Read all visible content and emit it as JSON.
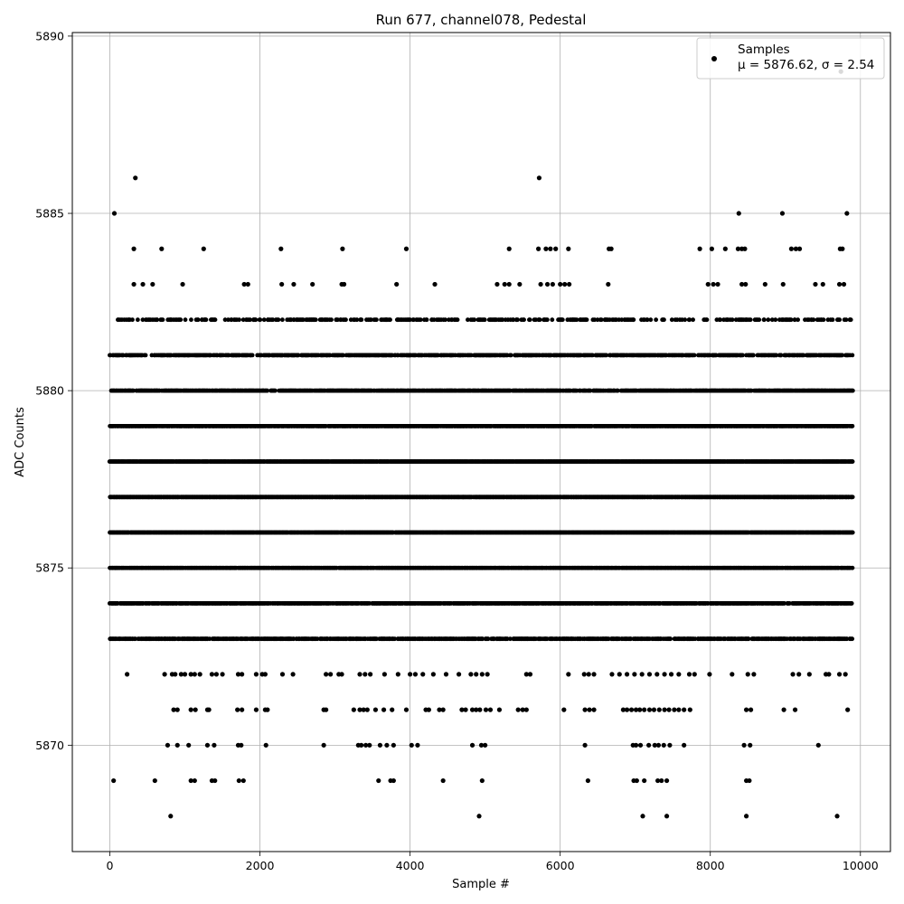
{
  "chart_data": {
    "type": "scatter",
    "title": "Run 677, channel078, Pedestal",
    "xlabel": "Sample #",
    "ylabel": "ADC Counts",
    "xlim": [
      -500,
      10400
    ],
    "ylim": [
      5867.0,
      5890.1
    ],
    "xticks": [
      0,
      2000,
      4000,
      6000,
      8000,
      10000
    ],
    "yticks": [
      5870,
      5875,
      5880,
      5885,
      5890
    ],
    "grid": true,
    "legend_placement": "top-right",
    "marker_color": "#000000",
    "series": [
      {
        "name": "Samples",
        "stats_label": "μ = 5876.62, σ = 2.54",
        "x_range": [
          0,
          9900
        ],
        "bands": [
          {
            "y": 5873,
            "coverage": 0.65
          },
          {
            "y": 5874,
            "coverage": 0.8
          },
          {
            "y": 5875,
            "coverage": 0.9
          },
          {
            "y": 5876,
            "coverage": 0.97
          },
          {
            "y": 5877,
            "coverage": 0.97
          },
          {
            "y": 5878,
            "coverage": 0.97
          },
          {
            "y": 5879,
            "coverage": 0.9
          },
          {
            "y": 5880,
            "coverage": 0.75
          },
          {
            "y": 5881,
            "coverage": 0.55
          },
          {
            "y": 5882,
            "coverage": 0.3
          }
        ],
        "outliers": [
          [
            50,
            5869
          ],
          [
            600,
            5869
          ],
          [
            1080,
            5869
          ],
          [
            1130,
            5869
          ],
          [
            1360,
            5869
          ],
          [
            1400,
            5869
          ],
          [
            1720,
            5869
          ],
          [
            1780,
            5869
          ],
          [
            3580,
            5869
          ],
          [
            3740,
            5869
          ],
          [
            3780,
            5869
          ],
          [
            4440,
            5869
          ],
          [
            4960,
            5869
          ],
          [
            6370,
            5869
          ],
          [
            6980,
            5869
          ],
          [
            7020,
            5869
          ],
          [
            7120,
            5869
          ],
          [
            7300,
            5869
          ],
          [
            7350,
            5869
          ],
          [
            7420,
            5869
          ],
          [
            8480,
            5869
          ],
          [
            8520,
            5869
          ],
          [
            810,
            5868
          ],
          [
            4920,
            5868
          ],
          [
            7100,
            5868
          ],
          [
            7420,
            5868
          ],
          [
            8480,
            5868
          ],
          [
            9690,
            5868
          ],
          [
            770,
            5870
          ],
          [
            900,
            5870
          ],
          [
            1050,
            5870
          ],
          [
            1300,
            5870
          ],
          [
            1390,
            5870
          ],
          [
            1710,
            5870
          ],
          [
            1750,
            5870
          ],
          [
            2080,
            5870
          ],
          [
            2850,
            5870
          ],
          [
            3310,
            5870
          ],
          [
            3350,
            5870
          ],
          [
            3410,
            5870
          ],
          [
            3460,
            5870
          ],
          [
            3600,
            5870
          ],
          [
            3690,
            5870
          ],
          [
            3780,
            5870
          ],
          [
            4020,
            5870
          ],
          [
            4100,
            5870
          ],
          [
            4830,
            5870
          ],
          [
            4950,
            5870
          ],
          [
            5000,
            5870
          ],
          [
            6330,
            5870
          ],
          [
            6970,
            5870
          ],
          [
            7010,
            5870
          ],
          [
            7070,
            5870
          ],
          [
            7180,
            5870
          ],
          [
            7260,
            5870
          ],
          [
            7310,
            5870
          ],
          [
            7380,
            5870
          ],
          [
            7460,
            5870
          ],
          [
            7650,
            5870
          ],
          [
            8450,
            5870
          ],
          [
            8530,
            5870
          ],
          [
            9440,
            5870
          ],
          [
            850,
            5871
          ],
          [
            900,
            5871
          ],
          [
            1080,
            5871
          ],
          [
            1140,
            5871
          ],
          [
            1300,
            5871
          ],
          [
            1320,
            5871
          ],
          [
            1700,
            5871
          ],
          [
            1760,
            5871
          ],
          [
            1950,
            5871
          ],
          [
            2070,
            5871
          ],
          [
            2100,
            5871
          ],
          [
            2850,
            5871
          ],
          [
            2880,
            5871
          ],
          [
            3250,
            5871
          ],
          [
            3330,
            5871
          ],
          [
            3380,
            5871
          ],
          [
            3430,
            5871
          ],
          [
            3540,
            5871
          ],
          [
            3650,
            5871
          ],
          [
            3760,
            5871
          ],
          [
            3950,
            5871
          ],
          [
            4210,
            5871
          ],
          [
            4250,
            5871
          ],
          [
            4390,
            5871
          ],
          [
            4440,
            5871
          ],
          [
            4690,
            5871
          ],
          [
            4740,
            5871
          ],
          [
            4830,
            5871
          ],
          [
            4880,
            5871
          ],
          [
            4930,
            5871
          ],
          [
            5010,
            5871
          ],
          [
            5070,
            5871
          ],
          [
            5190,
            5871
          ],
          [
            5440,
            5871
          ],
          [
            5500,
            5871
          ],
          [
            5550,
            5871
          ],
          [
            6050,
            5871
          ],
          [
            6330,
            5871
          ],
          [
            6390,
            5871
          ],
          [
            6450,
            5871
          ],
          [
            6840,
            5871
          ],
          [
            6890,
            5871
          ],
          [
            6950,
            5871
          ],
          [
            7010,
            5871
          ],
          [
            7060,
            5871
          ],
          [
            7120,
            5871
          ],
          [
            7190,
            5871
          ],
          [
            7250,
            5871
          ],
          [
            7320,
            5871
          ],
          [
            7390,
            5871
          ],
          [
            7450,
            5871
          ],
          [
            7520,
            5871
          ],
          [
            7580,
            5871
          ],
          [
            7650,
            5871
          ],
          [
            7730,
            5871
          ],
          [
            8480,
            5871
          ],
          [
            8540,
            5871
          ],
          [
            8980,
            5871
          ],
          [
            9130,
            5871
          ],
          [
            9830,
            5871
          ],
          [
            230,
            5872
          ],
          [
            730,
            5872
          ],
          [
            830,
            5872
          ],
          [
            870,
            5872
          ],
          [
            950,
            5872
          ],
          [
            1000,
            5872
          ],
          [
            1080,
            5872
          ],
          [
            1130,
            5872
          ],
          [
            1200,
            5872
          ],
          [
            1360,
            5872
          ],
          [
            1420,
            5872
          ],
          [
            1500,
            5872
          ],
          [
            1710,
            5872
          ],
          [
            1760,
            5872
          ],
          [
            1950,
            5872
          ],
          [
            2030,
            5872
          ],
          [
            2070,
            5872
          ],
          [
            2300,
            5872
          ],
          [
            2440,
            5872
          ],
          [
            2880,
            5872
          ],
          [
            2940,
            5872
          ],
          [
            3050,
            5872
          ],
          [
            3090,
            5872
          ],
          [
            3330,
            5872
          ],
          [
            3400,
            5872
          ],
          [
            3470,
            5872
          ],
          [
            3660,
            5872
          ],
          [
            3840,
            5872
          ],
          [
            4000,
            5872
          ],
          [
            4070,
            5872
          ],
          [
            4170,
            5872
          ],
          [
            4310,
            5872
          ],
          [
            4480,
            5872
          ],
          [
            4650,
            5872
          ],
          [
            4810,
            5872
          ],
          [
            4880,
            5872
          ],
          [
            4960,
            5872
          ],
          [
            5030,
            5872
          ],
          [
            5550,
            5872
          ],
          [
            5600,
            5872
          ],
          [
            6110,
            5872
          ],
          [
            6320,
            5872
          ],
          [
            6380,
            5872
          ],
          [
            6450,
            5872
          ],
          [
            6690,
            5872
          ],
          [
            6790,
            5872
          ],
          [
            6890,
            5872
          ],
          [
            6990,
            5872
          ],
          [
            7090,
            5872
          ],
          [
            7190,
            5872
          ],
          [
            7290,
            5872
          ],
          [
            7390,
            5872
          ],
          [
            7480,
            5872
          ],
          [
            7580,
            5872
          ],
          [
            7720,
            5872
          ],
          [
            7790,
            5872
          ],
          [
            7990,
            5872
          ],
          [
            8290,
            5872
          ],
          [
            8500,
            5872
          ],
          [
            8580,
            5872
          ],
          [
            9100,
            5872
          ],
          [
            9180,
            5872
          ],
          [
            9320,
            5872
          ],
          [
            9540,
            5872
          ],
          [
            9580,
            5872
          ],
          [
            9720,
            5872
          ],
          [
            9800,
            5872
          ],
          [
            60,
            5885
          ],
          [
            340,
            5886
          ],
          [
            5720,
            5886
          ],
          [
            8380,
            5885
          ],
          [
            8960,
            5885
          ],
          [
            9820,
            5885
          ],
          [
            9740,
            5889
          ],
          [
            320,
            5884
          ],
          [
            690,
            5884
          ],
          [
            1250,
            5884
          ],
          [
            2280,
            5884
          ],
          [
            3100,
            5884
          ],
          [
            3950,
            5884
          ],
          [
            5320,
            5884
          ],
          [
            5710,
            5884
          ],
          [
            5810,
            5884
          ],
          [
            5870,
            5884
          ],
          [
            5940,
            5884
          ],
          [
            6110,
            5884
          ],
          [
            6650,
            5884
          ],
          [
            6680,
            5884
          ],
          [
            7860,
            5884
          ],
          [
            8020,
            5884
          ],
          [
            8200,
            5884
          ],
          [
            8370,
            5884
          ],
          [
            8420,
            5884
          ],
          [
            8460,
            5884
          ],
          [
            9080,
            5884
          ],
          [
            9140,
            5884
          ],
          [
            9190,
            5884
          ],
          [
            9730,
            5884
          ],
          [
            9760,
            5884
          ],
          [
            320,
            5883
          ],
          [
            440,
            5883
          ],
          [
            570,
            5883
          ],
          [
            970,
            5883
          ],
          [
            1790,
            5883
          ],
          [
            1840,
            5883
          ],
          [
            2290,
            5883
          ],
          [
            2450,
            5883
          ],
          [
            2700,
            5883
          ],
          [
            3090,
            5883
          ],
          [
            3120,
            5883
          ],
          [
            3820,
            5883
          ],
          [
            4330,
            5883
          ],
          [
            5160,
            5883
          ],
          [
            5260,
            5883
          ],
          [
            5320,
            5883
          ],
          [
            5460,
            5883
          ],
          [
            5740,
            5883
          ],
          [
            5830,
            5883
          ],
          [
            5900,
            5883
          ],
          [
            6000,
            5883
          ],
          [
            6060,
            5883
          ],
          [
            6120,
            5883
          ],
          [
            6640,
            5883
          ],
          [
            7970,
            5883
          ],
          [
            8040,
            5883
          ],
          [
            8100,
            5883
          ],
          [
            8420,
            5883
          ],
          [
            8470,
            5883
          ],
          [
            8730,
            5883
          ],
          [
            8970,
            5883
          ],
          [
            9400,
            5883
          ],
          [
            9500,
            5883
          ],
          [
            9720,
            5883
          ],
          [
            9780,
            5883
          ]
        ]
      }
    ]
  }
}
